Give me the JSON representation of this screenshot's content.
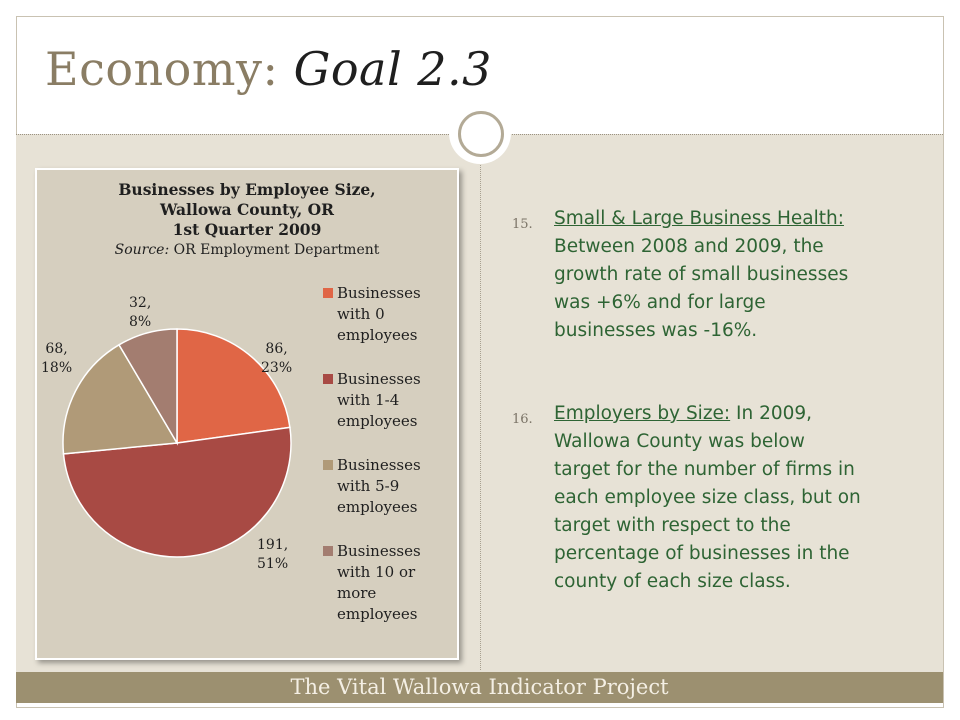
{
  "slide": {
    "title_prefix": "Economy: ",
    "title_goal": "Goal 2.3",
    "footer": "The Vital Wallowa Indicator Project"
  },
  "chart_data": {
    "type": "pie",
    "title_lines": [
      "Businesses by Employee Size,",
      "Wallowa County, OR",
      "1st Quarter 2009"
    ],
    "source_prefix": "Source:",
    "source_text": " OR Employment Department",
    "slices": [
      {
        "name": "Businesses with 0 employees",
        "legend_lines": [
          "Businesses",
          "with 0",
          "employees"
        ],
        "value": 86,
        "percent": "23%",
        "label_lines": [
          "86,",
          "23%"
        ],
        "color": "#e06646"
      },
      {
        "name": "Businesses with 1-4 employees",
        "legend_lines": [
          "Businesses",
          "with 1-4",
          "employees"
        ],
        "value": 191,
        "percent": "51%",
        "label_lines": [
          "191,",
          "51%"
        ],
        "color": "#a84a44"
      },
      {
        "name": "Businesses with 5-9 employees",
        "legend_lines": [
          "Businesses",
          "with 5-9",
          "employees"
        ],
        "value": 68,
        "percent": "18%",
        "label_lines": [
          "68,",
          "18%"
        ],
        "color": "#b09a78"
      },
      {
        "name": "Businesses with 10 or more employees",
        "legend_lines": [
          "Businesses",
          "with 10 or",
          "more",
          "employees"
        ],
        "value": 32,
        "percent": "8%",
        "label_lines": [
          "32,",
          "8%"
        ],
        "color": "#a37d70"
      }
    ],
    "legend_position": "right"
  },
  "list": {
    "items": [
      {
        "number": "15.",
        "heading": "Small & Large Business Health:",
        "body_lines": [
          "Between 2008 and 2009, the",
          "growth rate of small businesses",
          "was +6% and for large",
          "businesses was -16%."
        ]
      },
      {
        "number": "16.",
        "heading": "Employers by Size:",
        "first_line_rest": " In 2009,",
        "body_lines": [
          "Wallowa County was below",
          "target for the number of firms in",
          "each employee size class, but on",
          "target with respect to the",
          "percentage of businesses in the",
          "county of each size class."
        ]
      }
    ]
  }
}
